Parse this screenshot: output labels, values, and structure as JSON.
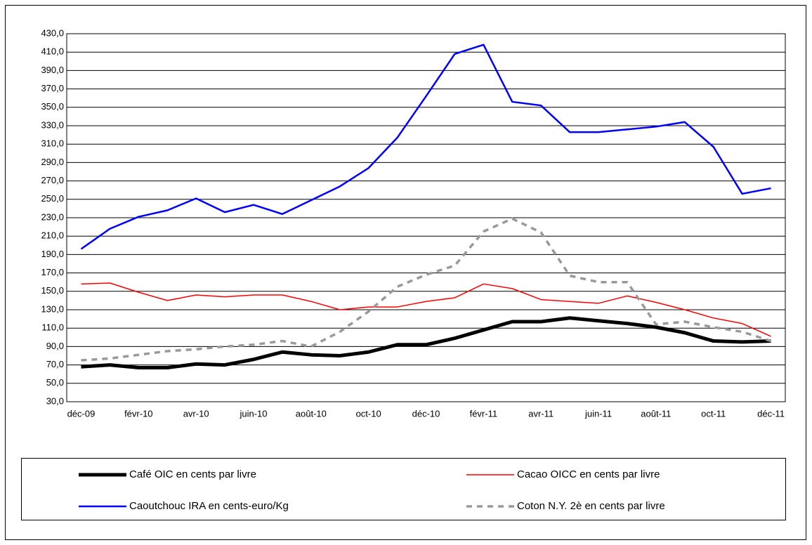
{
  "chart_data": {
    "type": "line",
    "categories": [
      "déc-09",
      null,
      "févr-10",
      null,
      "avr-10",
      null,
      "juin-10",
      null,
      "août-10",
      null,
      "oct-10",
      null,
      "déc-10",
      null,
      "févr-11",
      null,
      "avr-11",
      null,
      "juin-11",
      null,
      "août-11",
      null,
      "oct-11",
      null,
      "déc-11"
    ],
    "series": [
      {
        "name": "Café  OIC en cents par livre",
        "color": "#000000",
        "values": [
          68,
          70,
          67,
          67,
          71,
          70,
          76,
          84,
          81,
          80,
          84,
          92,
          92,
          99,
          108,
          117,
          117,
          121,
          118,
          115,
          111,
          105,
          96,
          95,
          96
        ]
      },
      {
        "name": "Cacao OICC en cents par livre",
        "color": "#ff0000",
        "values": [
          158,
          159,
          149,
          140,
          146,
          144,
          146,
          146,
          139,
          130,
          133,
          133,
          139,
          143,
          158,
          153,
          141,
          139,
          137,
          145,
          138,
          130,
          121,
          115,
          101
        ]
      },
      {
        "name": "Caoutchouc IRA en cents-euro/Kg",
        "color": "#0000ff",
        "values": [
          196,
          218,
          231,
          238,
          251,
          236,
          244,
          234,
          249,
          264,
          284,
          317,
          362,
          408,
          418,
          356,
          352,
          323,
          323,
          326,
          329,
          334,
          307,
          256,
          262
        ]
      },
      {
        "name": "Coton N.Y. 2è en cents par livre",
        "color": "#999999",
        "dashed": true,
        "values": [
          75,
          77,
          81,
          85,
          87,
          90,
          92,
          96,
          90,
          106,
          128,
          155,
          168,
          178,
          215,
          229,
          214,
          167,
          160,
          160,
          114,
          117,
          111,
          106,
          96
        ]
      }
    ],
    "ylim": [
      30,
      430
    ],
    "yticks": [
      {
        "value": 30,
        "label": "30,0"
      },
      {
        "value": 50,
        "label": "50,0"
      },
      {
        "value": 70,
        "label": "70,0"
      },
      {
        "value": 90,
        "label": "90,0"
      },
      {
        "value": 110,
        "label": "110,0"
      },
      {
        "value": 130,
        "label": "130,0"
      },
      {
        "value": 150,
        "label": "150,0"
      },
      {
        "value": 170,
        "label": "170,0"
      },
      {
        "value": 190,
        "label": "190,0"
      },
      {
        "value": 210,
        "label": "210,0"
      },
      {
        "value": 230,
        "label": "230,0"
      },
      {
        "value": 250,
        "label": "250,0"
      },
      {
        "value": 270,
        "label": "270,0"
      },
      {
        "value": 290,
        "label": "290,0"
      },
      {
        "value": 310,
        "label": "310,0"
      },
      {
        "value": 330,
        "label": "330,0"
      },
      {
        "value": 350,
        "label": "350,0"
      },
      {
        "value": 370,
        "label": "370,0"
      },
      {
        "value": 390,
        "label": "390,0"
      },
      {
        "value": 410,
        "label": "410,0"
      },
      {
        "value": 430,
        "label": "430,0"
      }
    ],
    "grid": true,
    "legend": "bottom"
  }
}
